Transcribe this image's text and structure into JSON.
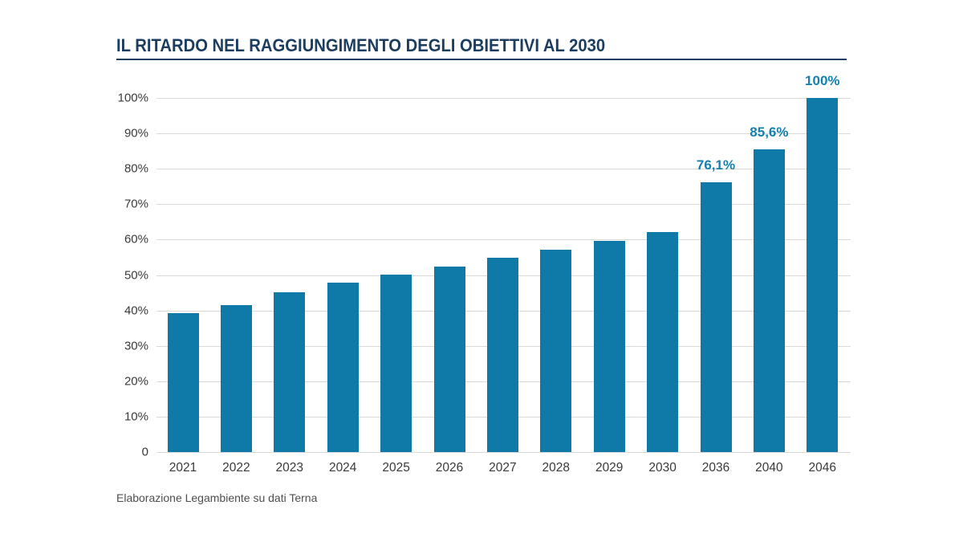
{
  "title": "IL RITARDO NEL RAGGIUNGIMENTO DEGLI OBIETTIVI AL 2030",
  "source_note": "Elaborazione Legambiente su dati Terna",
  "colors": {
    "title": "#1c3d5e",
    "title_rule": "#1c3d5e",
    "bar": "#0f79a8",
    "bar_value_label": "#1580ad",
    "axis_text": "#3a3a3a",
    "gridline": "#d9d9d9",
    "source_text": "#4e4e4e"
  },
  "chart_data": {
    "type": "bar",
    "title": "IL RITARDO NEL RAGGIUNGIMENTO DEGLI OBIETTIVI AL 2030",
    "categories": [
      "2021",
      "2022",
      "2023",
      "2024",
      "2025",
      "2026",
      "2027",
      "2028",
      "2029",
      "2030",
      "2036",
      "2040",
      "2046"
    ],
    "values": [
      39.2,
      41.4,
      45.2,
      47.8,
      50.1,
      52.4,
      54.8,
      57.2,
      59.7,
      62.1,
      76.1,
      85.6,
      100
    ],
    "bar_labels": [
      "",
      "",
      "",
      "",
      "",
      "",
      "",
      "",
      "",
      "",
      "76,1%",
      "85,6%",
      "100%"
    ],
    "xlabel": "",
    "ylabel": "",
    "ylim": [
      0,
      100
    ],
    "ytick_interval": 10,
    "ytick_labels": [
      "0",
      "10%",
      "20%",
      "30%",
      "40%",
      "50%",
      "60%",
      "70%",
      "80%",
      "90%",
      "100%"
    ],
    "grid": true,
    "legend": "none",
    "annotation_note": "only the last three bars carry printed value labels"
  }
}
